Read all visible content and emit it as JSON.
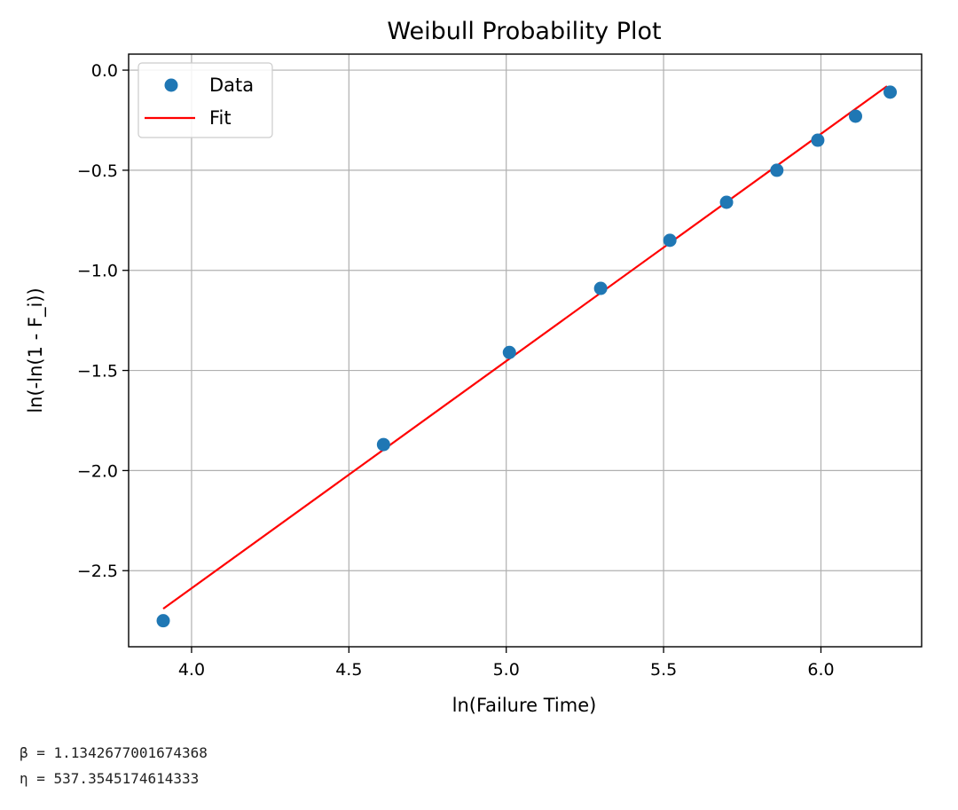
{
  "chart_data": {
    "type": "scatter",
    "title": "Weibull Probability Plot",
    "xlabel": "ln(Failure Time)",
    "ylabel": "ln(-ln(1 - F_i))",
    "xlim": [
      3.8,
      6.32
    ],
    "ylim": [
      -2.88,
      0.08
    ],
    "xticks": [
      4.0,
      4.5,
      5.0,
      5.5,
      6.0
    ],
    "xtick_labels": [
      "4.0",
      "4.5",
      "5.0",
      "5.5",
      "6.0"
    ],
    "yticks": [
      0.0,
      -0.5,
      -1.0,
      -1.5,
      -2.0,
      -2.5
    ],
    "ytick_labels": [
      "0.0",
      "−0.5",
      "−1.0",
      "−1.5",
      "−2.0",
      "−2.5"
    ],
    "grid": true,
    "legend_position": "top-left",
    "series": [
      {
        "name": "Data",
        "kind": "scatter",
        "color": "#1f77b4",
        "x": [
          3.91,
          4.61,
          5.01,
          5.3,
          5.52,
          5.7,
          5.86,
          5.99,
          6.11,
          6.22
        ],
        "y": [
          -2.75,
          -1.87,
          -1.41,
          -1.09,
          -0.85,
          -0.66,
          -0.5,
          -0.35,
          -0.23,
          -0.11
        ]
      },
      {
        "name": "Fit",
        "kind": "line",
        "color": "#ff0000",
        "x": [
          3.91,
          6.21
        ],
        "y": [
          -2.69,
          -0.08
        ]
      }
    ]
  },
  "output": {
    "beta_line": "β = 1.1342677001674368",
    "eta_line": "η = 537.3545174614333"
  }
}
